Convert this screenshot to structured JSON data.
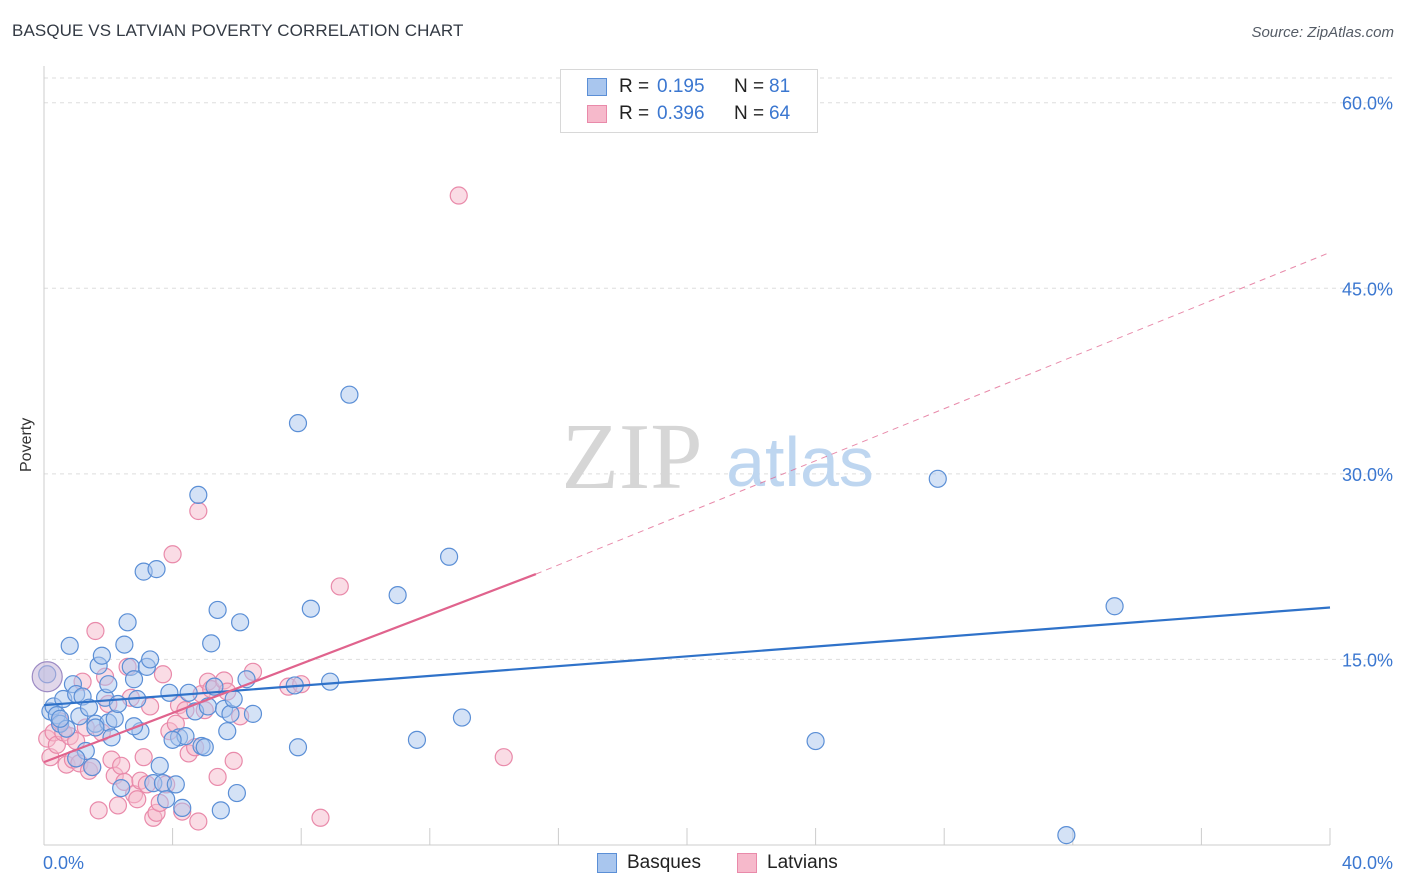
{
  "title": "BASQUE VS LATVIAN POVERTY CORRELATION CHART",
  "source": "Source: ZipAtlas.com",
  "watermark": {
    "zip": "ZIP",
    "atlas": "atlas"
  },
  "stats": [
    {
      "r_label": "R =",
      "r_value": "0.195",
      "n_label": "N =",
      "n_value": "81"
    },
    {
      "r_label": "R =",
      "r_value": "0.396",
      "n_label": "N =",
      "n_value": "64"
    }
  ],
  "legend": {
    "basques": "Basques",
    "latvians": "Latvians"
  },
  "colors": {
    "basques_fill": "#a9c6ee",
    "basques_stroke": "#5b8fd6",
    "basques_line": "#2f72c9",
    "latvians_fill": "#f6b9cb",
    "latvians_stroke": "#e98aaa",
    "latvians_line": "#e0638d",
    "tick_label": "#3b77d0",
    "grid": "#dddddd"
  },
  "chart_data": {
    "type": "scatter",
    "title": "BASQUE VS LATVIAN POVERTY CORRELATION CHART",
    "xlabel": "",
    "ylabel": "Poverty",
    "xlim": [
      0,
      40
    ],
    "ylim": [
      0,
      62
    ],
    "x_tick_labels": [
      {
        "value": 0,
        "label": "0.0%"
      },
      {
        "value": 40,
        "label": "40.0%"
      }
    ],
    "y_tick_labels": [
      {
        "value": 15,
        "label": "15.0%"
      },
      {
        "value": 30,
        "label": "30.0%"
      },
      {
        "value": 45,
        "label": "45.0%"
      },
      {
        "value": 60,
        "label": "60.0%"
      }
    ],
    "grid": true,
    "legend_position": "bottom-center",
    "series": [
      {
        "name": "Basques",
        "trend": {
          "x": [
            0,
            40
          ],
          "y": [
            11.3,
            19.2
          ]
        },
        "points": [
          [
            0.1,
            13.8
          ],
          [
            0.2,
            10.8
          ],
          [
            0.3,
            11.2
          ],
          [
            0.4,
            10.5
          ],
          [
            0.5,
            9.8
          ],
          [
            0.6,
            11.8
          ],
          [
            0.7,
            9.4
          ],
          [
            0.8,
            16.1
          ],
          [
            0.9,
            13.0
          ],
          [
            1.0,
            12.2
          ],
          [
            1.1,
            10.4
          ],
          [
            1.2,
            12.0
          ],
          [
            1.3,
            7.6
          ],
          [
            1.4,
            11.1
          ],
          [
            1.5,
            6.3
          ],
          [
            1.6,
            9.8
          ],
          [
            1.7,
            14.5
          ],
          [
            1.8,
            15.3
          ],
          [
            1.9,
            11.9
          ],
          [
            2.0,
            9.9
          ],
          [
            2.1,
            8.7
          ],
          [
            2.2,
            10.2
          ],
          [
            2.3,
            11.4
          ],
          [
            2.4,
            4.6
          ],
          [
            2.5,
            16.2
          ],
          [
            2.6,
            18.0
          ],
          [
            2.7,
            14.4
          ],
          [
            2.8,
            13.4
          ],
          [
            2.9,
            11.8
          ],
          [
            3.0,
            9.2
          ],
          [
            2.8,
            9.6
          ],
          [
            3.1,
            22.1
          ],
          [
            3.2,
            14.4
          ],
          [
            3.3,
            15.0
          ],
          [
            3.4,
            5.0
          ],
          [
            3.5,
            22.3
          ],
          [
            3.6,
            6.4
          ],
          [
            3.7,
            5.0
          ],
          [
            3.8,
            3.7
          ],
          [
            3.9,
            12.3
          ],
          [
            4.1,
            4.9
          ],
          [
            4.2,
            8.7
          ],
          [
            4.3,
            3.0
          ],
          [
            4.4,
            8.8
          ],
          [
            4.5,
            12.3
          ],
          [
            4.7,
            10.8
          ],
          [
            4.8,
            28.3
          ],
          [
            4.9,
            8.0
          ],
          [
            5.0,
            7.9
          ],
          [
            5.1,
            11.2
          ],
          [
            5.2,
            16.3
          ],
          [
            5.3,
            12.8
          ],
          [
            5.4,
            19.0
          ],
          [
            5.5,
            2.8
          ],
          [
            5.6,
            11.0
          ],
          [
            5.7,
            9.2
          ],
          [
            5.8,
            10.6
          ],
          [
            5.9,
            11.8
          ],
          [
            6.0,
            4.2
          ],
          [
            6.1,
            18.0
          ],
          [
            6.3,
            13.4
          ],
          [
            6.5,
            10.6
          ],
          [
            7.8,
            12.9
          ],
          [
            7.9,
            34.1
          ],
          [
            7.9,
            7.9
          ],
          [
            8.3,
            19.1
          ],
          [
            8.9,
            13.2
          ],
          [
            9.5,
            36.4
          ],
          [
            11.0,
            20.2
          ],
          [
            11.6,
            8.5
          ],
          [
            12.6,
            23.3
          ],
          [
            13.0,
            10.3
          ],
          [
            24.0,
            8.4
          ],
          [
            27.8,
            29.6
          ],
          [
            31.8,
            0.8
          ],
          [
            33.3,
            19.3
          ],
          [
            1.0,
            7.0
          ],
          [
            2.0,
            13.0
          ],
          [
            0.5,
            10.2
          ],
          [
            1.6,
            9.5
          ],
          [
            4.0,
            8.5
          ]
        ]
      },
      {
        "name": "Latvians",
        "trend": {
          "x": [
            0,
            15.3
          ],
          "y": [
            6.7,
            21.9
          ]
        },
        "trend_extension": {
          "x": [
            15.3,
            40
          ],
          "y": [
            21.9,
            47.9
          ]
        },
        "points": [
          [
            0.1,
            8.6
          ],
          [
            0.2,
            7.1
          ],
          [
            0.3,
            9.1
          ],
          [
            0.4,
            8.1
          ],
          [
            0.5,
            10.0
          ],
          [
            0.6,
            9.1
          ],
          [
            0.7,
            6.5
          ],
          [
            0.8,
            8.8
          ],
          [
            0.9,
            6.9
          ],
          [
            1.0,
            8.4
          ],
          [
            1.1,
            6.6
          ],
          [
            1.2,
            13.2
          ],
          [
            1.3,
            9.5
          ],
          [
            1.4,
            6.0
          ],
          [
            1.5,
            6.3
          ],
          [
            1.6,
            17.3
          ],
          [
            1.7,
            2.8
          ],
          [
            1.8,
            9.1
          ],
          [
            1.9,
            13.6
          ],
          [
            2.0,
            11.4
          ],
          [
            2.1,
            6.9
          ],
          [
            2.2,
            5.6
          ],
          [
            2.3,
            3.2
          ],
          [
            2.4,
            6.4
          ],
          [
            2.5,
            5.1
          ],
          [
            2.6,
            14.4
          ],
          [
            2.7,
            11.9
          ],
          [
            2.8,
            4.1
          ],
          [
            2.9,
            3.7
          ],
          [
            3.0,
            5.2
          ],
          [
            3.1,
            7.1
          ],
          [
            3.2,
            4.9
          ],
          [
            3.3,
            11.2
          ],
          [
            3.4,
            2.2
          ],
          [
            3.5,
            2.6
          ],
          [
            3.6,
            3.4
          ],
          [
            3.7,
            13.8
          ],
          [
            3.8,
            4.9
          ],
          [
            3.9,
            9.2
          ],
          [
            4.0,
            23.5
          ],
          [
            4.1,
            9.8
          ],
          [
            4.2,
            11.3
          ],
          [
            4.3,
            2.7
          ],
          [
            4.4,
            10.9
          ],
          [
            4.5,
            7.4
          ],
          [
            4.7,
            7.9
          ],
          [
            4.8,
            27.0
          ],
          [
            4.9,
            12.2
          ],
          [
            5.0,
            10.9
          ],
          [
            5.1,
            13.2
          ],
          [
            5.2,
            12.6
          ],
          [
            5.4,
            5.5
          ],
          [
            5.6,
            13.3
          ],
          [
            5.7,
            12.4
          ],
          [
            5.9,
            6.8
          ],
          [
            6.1,
            10.4
          ],
          [
            6.5,
            14.0
          ],
          [
            7.6,
            12.8
          ],
          [
            8.0,
            13.0
          ],
          [
            8.6,
            2.2
          ],
          [
            9.2,
            20.9
          ],
          [
            12.9,
            52.5
          ],
          [
            14.3,
            7.1
          ],
          [
            4.8,
            1.9
          ]
        ]
      }
    ]
  }
}
